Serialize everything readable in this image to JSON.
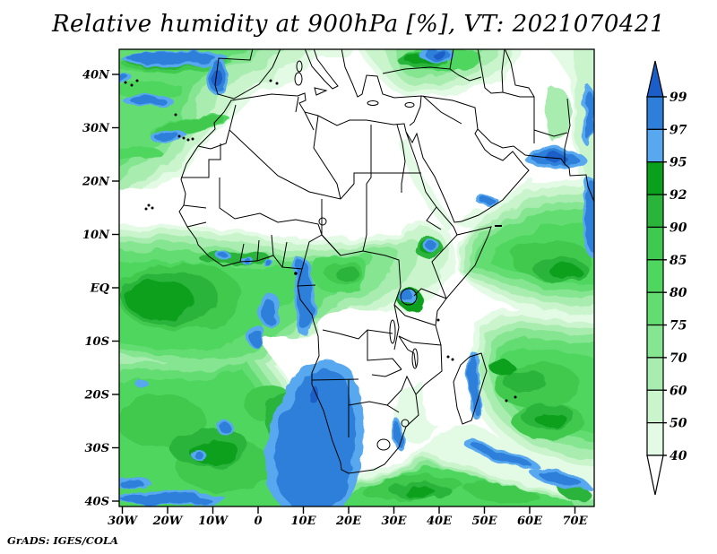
{
  "title": "Relative humidity at 900hPa [%], VT: 2021070421",
  "credit": "GrADS: IGES/COLA",
  "chart_data": {
    "type": "heatmap",
    "title": "Relative humidity at 900hPa [%], VT: 2021070421",
    "variable": "Relative humidity",
    "pressure_level": "900hPa",
    "units": "%",
    "valid_time": "2021070421",
    "region": "Africa and surroundings",
    "axes": {
      "lat_ticks": [
        "40N",
        "30N",
        "20N",
        "10N",
        "EQ",
        "10S",
        "20S",
        "30S",
        "40S"
      ],
      "lon_ticks": [
        "30W",
        "20W",
        "10W",
        "0",
        "10E",
        "20E",
        "30E",
        "40E",
        "50E",
        "60E",
        "70E"
      ]
    },
    "colorbar": {
      "labels": [
        "99",
        "97",
        "95",
        "92",
        "90",
        "85",
        "80",
        "75",
        "70",
        "60",
        "50",
        "40"
      ],
      "segment_colors_top_to_bottom": [
        "97_99",
        "95_97",
        "92_95",
        "90_92",
        "85_90",
        "80_85",
        "75_80",
        "70_75",
        "60_70",
        "50_60",
        "40_50"
      ],
      "above_max_color": "gt99",
      "below_min_color": "lt40"
    },
    "palette": {
      "gt99": "#1b5ec9",
      "97_99": "#2e7fd9",
      "95_97": "#58a8f0",
      "92_95": "#09a01d",
      "90_92": "#2ab43a",
      "85_90": "#3fc94e",
      "80_85": "#4fd65f",
      "75_80": "#63dc72",
      "70_75": "#85e591",
      "60_70": "#a8edaf",
      "50_60": "#c9f4cc",
      "40_50": "#e3fae5",
      "lt40": "#ffffff"
    }
  }
}
